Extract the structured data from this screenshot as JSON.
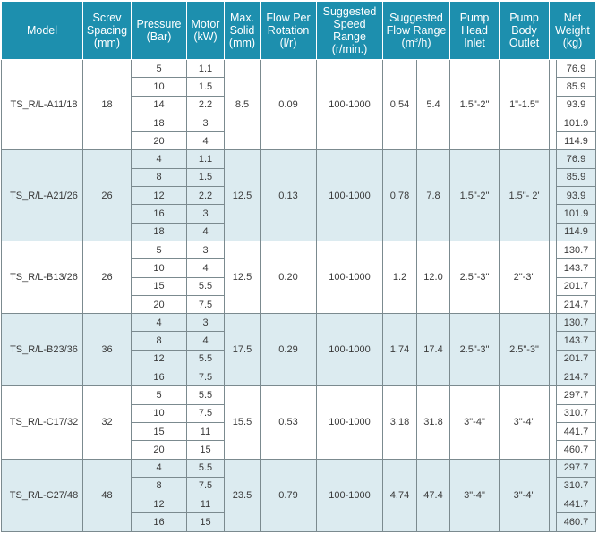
{
  "headers": {
    "model": "Model",
    "screw_spacing": [
      "Screv",
      "Spacing",
      "(mm)"
    ],
    "pressure": [
      "Pressure",
      "(Bar)"
    ],
    "motor": [
      "Motor",
      "(kW)"
    ],
    "max_solid": [
      "Max.",
      "Solid",
      "(mm)"
    ],
    "flow_per_rotation": [
      "Flow Per",
      "Rotation",
      "(l/r)"
    ],
    "speed_range": [
      "Suggested",
      "Speed",
      "Range",
      "(r/min.)"
    ],
    "flow_range": [
      "Suggested",
      "Flow Range",
      "(m",
      "3",
      "/h)"
    ],
    "pump_head_inlet": [
      "Pump",
      "Head",
      "Inlet"
    ],
    "pump_body_outlet": [
      "Pump",
      "Body",
      "Outlet"
    ],
    "net_weight": [
      "Net",
      "Weight",
      "(kg)"
    ]
  },
  "groups": [
    {
      "model": "TS_R/L-A11/18",
      "screw_spacing": "18",
      "max_solid": "8.5",
      "flow_per_rotation": "0.09",
      "speed_range": "100-1000",
      "flow_min": "0.54",
      "flow_max": "5.4",
      "inlet": "1.5\"-2\"",
      "outlet": "1\"-1.5\"",
      "rows": [
        {
          "pressure": "5",
          "motor": "1.1",
          "weight": "76.9"
        },
        {
          "pressure": "10",
          "motor": "1.5",
          "weight": "85.9"
        },
        {
          "pressure": "14",
          "motor": "2.2",
          "weight": "93.9"
        },
        {
          "pressure": "18",
          "motor": "3",
          "weight": "101.9"
        },
        {
          "pressure": "20",
          "motor": "4",
          "weight": "114.9"
        }
      ]
    },
    {
      "model": "TS_R/L-A21/26",
      "screw_spacing": "26",
      "max_solid": "12.5",
      "flow_per_rotation": "0.13",
      "speed_range": "100-1000",
      "flow_min": "0.78",
      "flow_max": "7.8",
      "inlet": "1.5\"-2\"",
      "outlet": "1.5\"- 2'",
      "rows": [
        {
          "pressure": "4",
          "motor": "1.1",
          "weight": "76.9"
        },
        {
          "pressure": "8",
          "motor": "1.5",
          "weight": "85.9"
        },
        {
          "pressure": "12",
          "motor": "2.2",
          "weight": "93.9"
        },
        {
          "pressure": "16",
          "motor": "3",
          "weight": "101.9"
        },
        {
          "pressure": "18",
          "motor": "4",
          "weight": "114.9"
        }
      ]
    },
    {
      "model": "TS_R/L-B13/26",
      "screw_spacing": "26",
      "max_solid": "12.5",
      "flow_per_rotation": "0.20",
      "speed_range": "100-1000",
      "flow_min": "1.2",
      "flow_max": "12.0",
      "inlet": "2.5\"-3\"",
      "outlet": "2\"-3\"",
      "rows": [
        {
          "pressure": "5",
          "motor": "3",
          "weight": "130.7"
        },
        {
          "pressure": "10",
          "motor": "4",
          "weight": "143.7"
        },
        {
          "pressure": "15",
          "motor": "5.5",
          "weight": "201.7"
        },
        {
          "pressure": "20",
          "motor": "7.5",
          "weight": "214.7"
        }
      ]
    },
    {
      "model": "TS_R/L-B23/36",
      "screw_spacing": "36",
      "max_solid": "17.5",
      "flow_per_rotation": "0.29",
      "speed_range": "100-1000",
      "flow_min": "1.74",
      "flow_max": "17.4",
      "inlet": "2.5\"-3\"",
      "outlet": "2.5\"-3\"",
      "rows": [
        {
          "pressure": "4",
          "motor": "3",
          "weight": "130.7"
        },
        {
          "pressure": "8",
          "motor": "4",
          "weight": "143.7"
        },
        {
          "pressure": "12",
          "motor": "5.5",
          "weight": "201.7"
        },
        {
          "pressure": "16",
          "motor": "7.5",
          "weight": "214.7"
        }
      ]
    },
    {
      "model": "TS_R/L-C17/32",
      "screw_spacing": "32",
      "max_solid": "15.5",
      "flow_per_rotation": "0.53",
      "speed_range": "100-1000",
      "flow_min": "3.18",
      "flow_max": "31.8",
      "inlet": "3\"-4\"",
      "outlet": "3\"-4\"",
      "rows": [
        {
          "pressure": "5",
          "motor": "5.5",
          "weight": "297.7"
        },
        {
          "pressure": "10",
          "motor": "7.5",
          "weight": "310.7"
        },
        {
          "pressure": "15",
          "motor": "11",
          "weight": "441.7"
        },
        {
          "pressure": "20",
          "motor": "15",
          "weight": "460.7"
        }
      ]
    },
    {
      "model": "TS_R/L-C27/48",
      "screw_spacing": "48",
      "max_solid": "23.5",
      "flow_per_rotation": "0.79",
      "speed_range": "100-1000",
      "flow_min": "4.74",
      "flow_max": "47.4",
      "inlet": "3\"-4\"",
      "outlet": "3\"-4\"",
      "rows": [
        {
          "pressure": "4",
          "motor": "5.5",
          "weight": "297.7"
        },
        {
          "pressure": "8",
          "motor": "7.5",
          "weight": "310.7"
        },
        {
          "pressure": "12",
          "motor": "11",
          "weight": "441.7"
        },
        {
          "pressure": "16",
          "motor": "15",
          "weight": "460.7"
        }
      ]
    }
  ]
}
